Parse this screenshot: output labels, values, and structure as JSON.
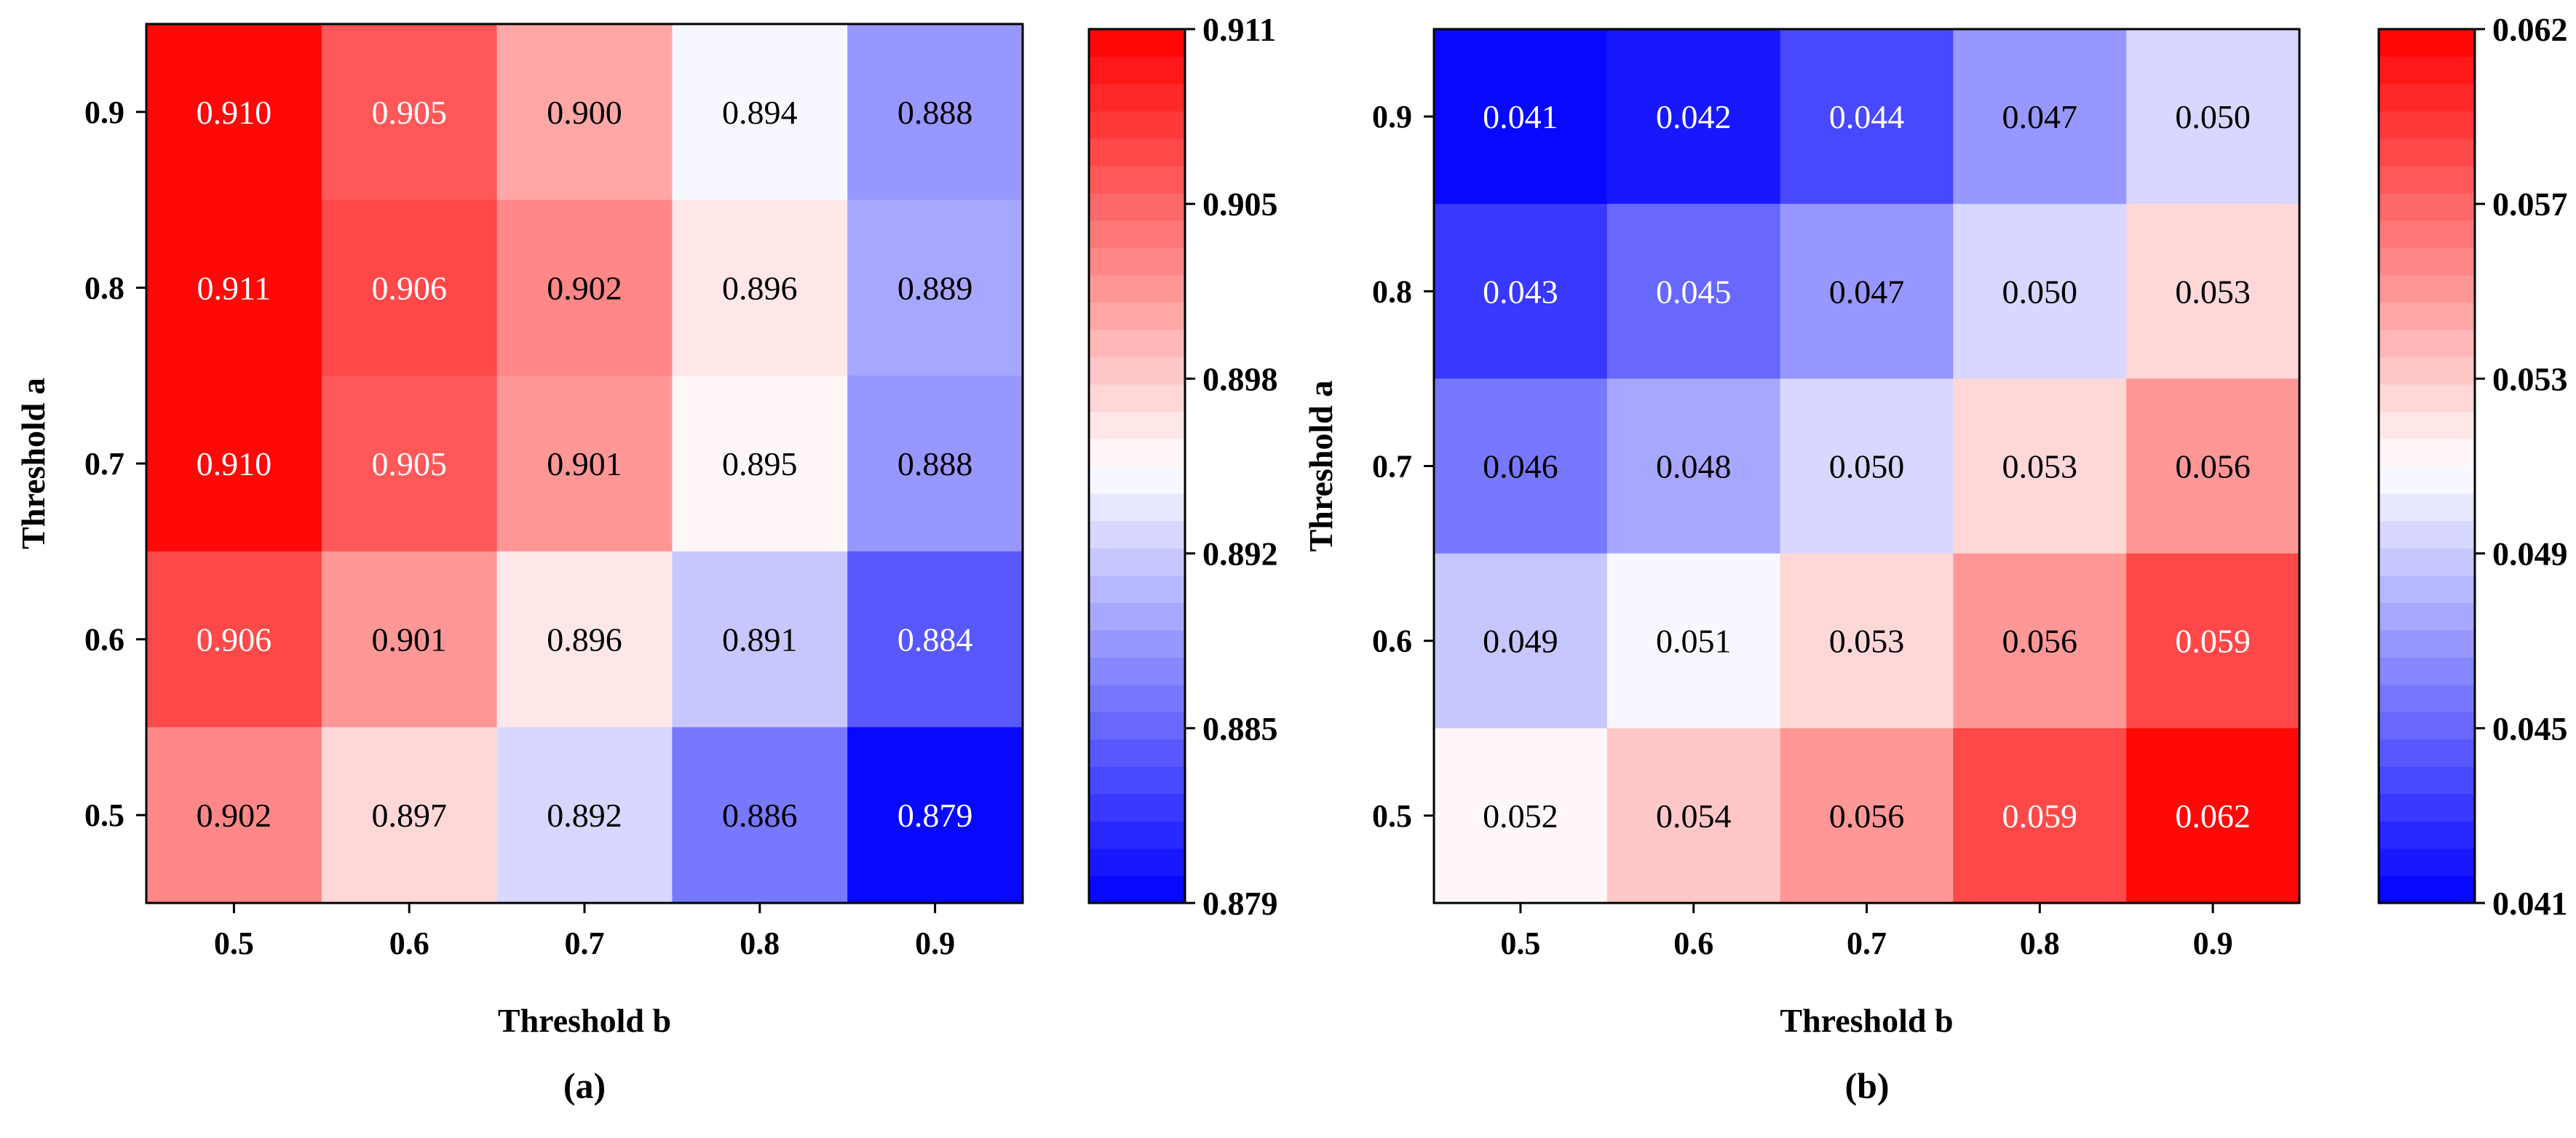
{
  "chart_data": [
    {
      "type": "heatmap",
      "panel_label": "(a)",
      "xlabel": "Threshold b",
      "ylabel": "Threshold a",
      "x_categories": [
        "0.5",
        "0.6",
        "0.7",
        "0.8",
        "0.9"
      ],
      "y_categories": [
        "0.9",
        "0.8",
        "0.7",
        "0.6",
        "0.5"
      ],
      "values": [
        [
          0.91,
          0.905,
          0.9,
          0.894,
          0.888
        ],
        [
          0.911,
          0.906,
          0.902,
          0.896,
          0.889
        ],
        [
          0.91,
          0.905,
          0.901,
          0.895,
          0.888
        ],
        [
          0.906,
          0.901,
          0.896,
          0.891,
          0.884
        ],
        [
          0.902,
          0.897,
          0.892,
          0.886,
          0.879
        ]
      ],
      "cell_text": [
        [
          "0.910",
          "0.905",
          "0.900",
          "0.894",
          "0.888"
        ],
        [
          "0.911",
          "0.906",
          "0.902",
          "0.896",
          "0.889"
        ],
        [
          "0.910",
          "0.905",
          "0.901",
          "0.895",
          "0.888"
        ],
        [
          "0.906",
          "0.901",
          "0.896",
          "0.891",
          "0.884"
        ],
        [
          "0.902",
          "0.897",
          "0.892",
          "0.886",
          "0.879"
        ]
      ],
      "colorbar": {
        "min": 0.879,
        "max": 0.911,
        "ticks": [
          "0.911",
          "0.905",
          "0.898",
          "0.892",
          "0.885",
          "0.879"
        ],
        "levels": 32,
        "colormap": "bwr",
        "low_color": "#0000ff",
        "mid_color": "#ffffff",
        "high_color": "#ff0000"
      }
    },
    {
      "type": "heatmap",
      "panel_label": "(b)",
      "xlabel": "Threshold b",
      "ylabel": "Threshold a",
      "x_categories": [
        "0.5",
        "0.6",
        "0.7",
        "0.8",
        "0.9"
      ],
      "y_categories": [
        "0.9",
        "0.8",
        "0.7",
        "0.6",
        "0.5"
      ],
      "values": [
        [
          0.041,
          0.042,
          0.044,
          0.047,
          0.05
        ],
        [
          0.043,
          0.045,
          0.047,
          0.05,
          0.053
        ],
        [
          0.046,
          0.048,
          0.05,
          0.053,
          0.056
        ],
        [
          0.049,
          0.051,
          0.053,
          0.056,
          0.059
        ],
        [
          0.052,
          0.054,
          0.056,
          0.059,
          0.062
        ]
      ],
      "cell_text": [
        [
          "0.041",
          "0.042",
          "0.044",
          "0.047",
          "0.050"
        ],
        [
          "0.043",
          "0.045",
          "0.047",
          "0.050",
          "0.053"
        ],
        [
          "0.046",
          "0.048",
          "0.050",
          "0.053",
          "0.056"
        ],
        [
          "0.049",
          "0.051",
          "0.053",
          "0.056",
          "0.059"
        ],
        [
          "0.052",
          "0.054",
          "0.056",
          "0.059",
          "0.062"
        ]
      ],
      "colorbar": {
        "min": 0.041,
        "max": 0.062,
        "ticks": [
          "0.062",
          "0.057",
          "0.053",
          "0.049",
          "0.045",
          "0.041"
        ],
        "levels": 32,
        "colormap": "bwr",
        "low_color": "#0000ff",
        "mid_color": "#ffffff",
        "high_color": "#ff0000"
      }
    }
  ]
}
